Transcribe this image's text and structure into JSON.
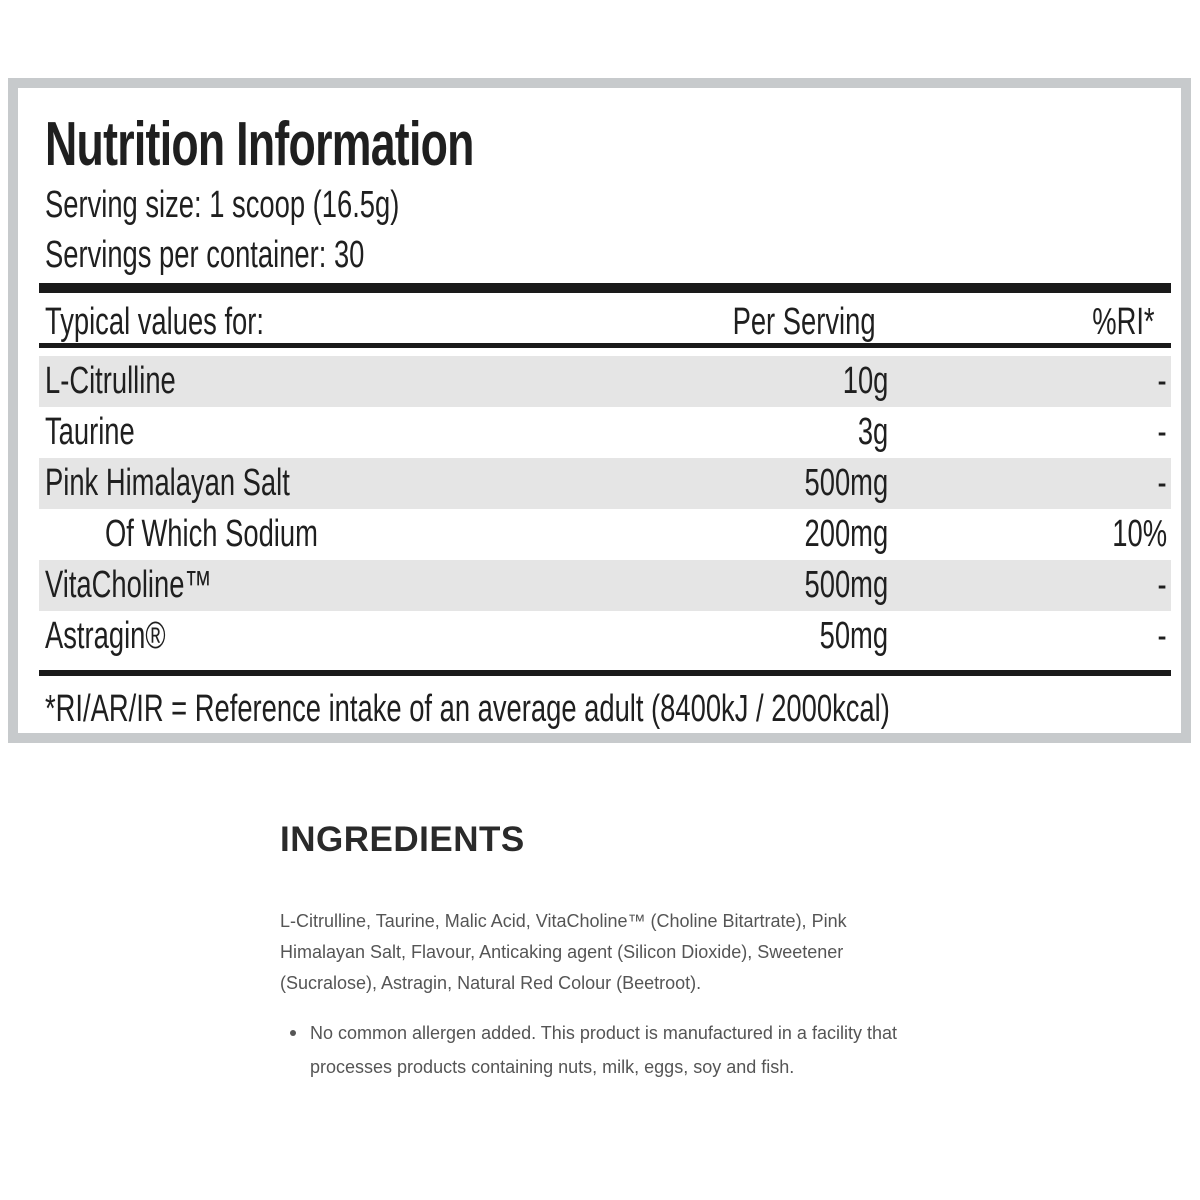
{
  "nutrition": {
    "title": "Nutrition Information",
    "serving_size": "Serving size: 1 scoop (16.5g)",
    "servings_per_container": "Servings per container: 30",
    "header": {
      "typical_values": "Typical values for:",
      "per_serving": "Per Serving",
      "ri": "%RI*"
    },
    "rows": [
      {
        "name": "L-Citrulline",
        "value": "10g",
        "ri": "-"
      },
      {
        "name": "Taurine",
        "value": "3g",
        "ri": "-"
      },
      {
        "name": "Pink Himalayan Salt",
        "value": "500mg",
        "ri": "-"
      },
      {
        "name": "Of Which Sodium",
        "value": "200mg",
        "ri": "10%"
      },
      {
        "name": "VitaCholine™",
        "value": "500mg",
        "ri": "-"
      },
      {
        "name": "Astragin®",
        "value": "50mg",
        "ri": "-"
      }
    ],
    "footnote": "*RI/AR/IR = Reference intake of an average adult (8400kJ / 2000kcal)"
  },
  "ingredients": {
    "heading": "INGREDIENTS",
    "text": "L-Citrulline, Taurine, Malic Acid, VitaCholine™ (Choline Bitartrate), Pink Himalayan Salt, Flavour, Anticaking agent (Silicon Dioxide), Sweetener (Sucralose), Astragin, Natural Red Colour (Beetroot).",
    "allergens": [
      "No common allergen added. This product is manufactured in a facility that processes products containing nuts, milk, eggs, soy and fish."
    ]
  },
  "colors": {
    "panel_border": "#c7cacc",
    "row_shade": "#e5e5e5",
    "rule": "#1a1a1a"
  }
}
